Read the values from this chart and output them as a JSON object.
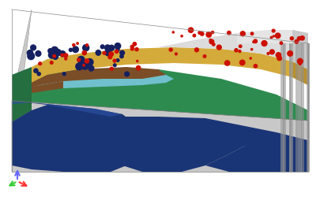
{
  "bg_color": "#ffffff",
  "figure_size": [
    4.05,
    2.5
  ],
  "dpi": 100,
  "colors": {
    "base_gray": "#c8c8c8",
    "base_gray_dark": "#b0b0b0",
    "green": "#2e8b50",
    "green_dark": "#246e40",
    "green_side": "#1e5c34",
    "dark_blue": "#1a3575",
    "dark_blue2": "#152d65",
    "light_blue": "#7ac8e0",
    "yellow": "#d4aa3a",
    "yellow_dark": "#b89030",
    "brown": "#7b4e28",
    "white_gray": "#dcdcdc",
    "white_gray2": "#c8c8c8",
    "red": "#cc1100",
    "dark_blue_spot": "#152060",
    "stripe_gray": "#9a9a9a"
  },
  "axis_colors": {
    "x": "#ff3333",
    "y": "#33cc33",
    "z": "#6666ff"
  }
}
